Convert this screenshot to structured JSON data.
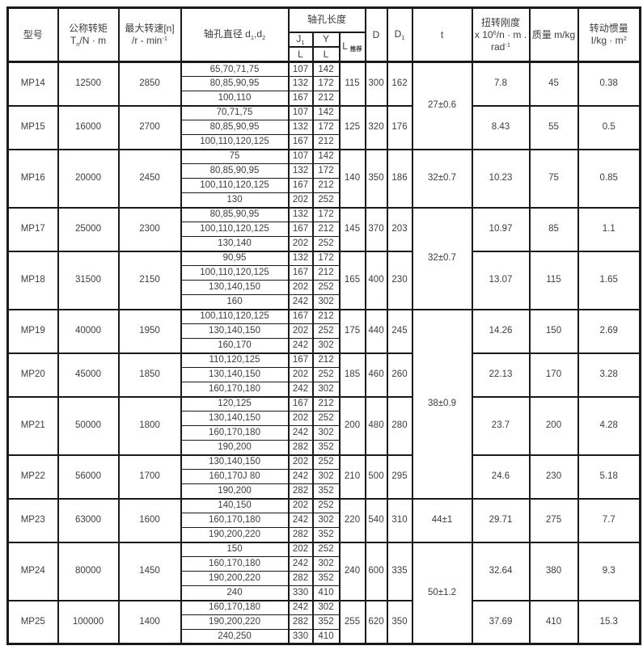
{
  "table": {
    "header": {
      "model": "型号",
      "torque_title": "公称转矩",
      "torque_sym": "T",
      "torque_sub": "n",
      "torque_unit": "/N · m",
      "speed_title": "最大转速[n]",
      "speed_unit": "/r - min",
      "speed_sup": "-1",
      "bore_title": "轴孔直径 d",
      "bore_sub1": "1",
      "bore_mid": ",d",
      "bore_sub2": "2",
      "length_title": "轴孔长度",
      "j_sym": "J",
      "j_sub": "1",
      "y_label": "Y",
      "l_label_j": "L",
      "l_label_y": "L",
      "lrec_sym": "L",
      "lrec_sub": "推荐",
      "d_label": "D",
      "d1_sym": "D",
      "d1_sub": "1",
      "t_label": "t",
      "stiff_title": "扭转刚度",
      "stiff_l2a": "x 10",
      "stiff_l2sup": "6",
      "stiff_l2b": "/n · m .",
      "stiff_l3a": "rad",
      "stiff_l3sup": "-1",
      "mass_label": "质量  m/kg",
      "inertia_title": "转动惯量",
      "inertia_unit": "I/kg · m",
      "inertia_sup": "2"
    },
    "groups": [
      {
        "model": "MP14",
        "torque": "12500",
        "speed": "2850",
        "l_rec": "115",
        "D": "300",
        "D1": "162",
        "t": {
          "label": "27±0.6",
          "rowspan": 6
        },
        "stiffness": "7.8",
        "mass": "45",
        "inertia": "0.38",
        "bores": [
          {
            "d": "65,70,71,75",
            "j1": "107",
            "y": "142"
          },
          {
            "d": "80,85,90,95",
            "j1": "132",
            "y": "172"
          },
          {
            "d": "100,110",
            "j1": "167",
            "y": "212"
          }
        ]
      },
      {
        "model": "MP15",
        "torque": "16000",
        "speed": "2700",
        "l_rec": "125",
        "D": "320",
        "D1": "176",
        "t": null,
        "stiffness": "8.43",
        "mass": "55",
        "inertia": "0.5",
        "bores": [
          {
            "d": "70,71,75",
            "j1": "107",
            "y": "142"
          },
          {
            "d": "80,85,90,95",
            "j1": "132",
            "y": "172"
          },
          {
            "d": "100,110,120,125",
            "j1": "167",
            "y": "212"
          }
        ]
      },
      {
        "model": "MP16",
        "torque": "20000",
        "speed": "2450",
        "l_rec": "140",
        "D": "350",
        "D1": "186",
        "t": {
          "label": "32±0.7",
          "rowspan": 4
        },
        "stiffness": "10.23",
        "mass": "75",
        "inertia": "0.85",
        "bores": [
          {
            "d": "75",
            "j1": "107",
            "y": "142"
          },
          {
            "d": "80,85,90,95",
            "j1": "132",
            "y": "172"
          },
          {
            "d": "100,110,120,125",
            "j1": "167",
            "y": "212"
          },
          {
            "d": "130",
            "j1": "202",
            "y": "252"
          }
        ]
      },
      {
        "model": "MP17",
        "torque": "25000",
        "speed": "2300",
        "l_rec": "145",
        "D": "370",
        "D1": "203",
        "t": {
          "label": "32±0.7",
          "rowspan": 7
        },
        "stiffness": "10.97",
        "mass": "85",
        "inertia": "1.1",
        "bores": [
          {
            "d": "80,85,90,95",
            "j1": "132",
            "y": "172"
          },
          {
            "d": "100,110,120,125",
            "j1": "167",
            "y": "212"
          },
          {
            "d": "130,140",
            "j1": "202",
            "y": "252"
          }
        ]
      },
      {
        "model": "MP18",
        "torque": "31500",
        "speed": "2150",
        "l_rec": "165",
        "D": "400",
        "D1": "230",
        "t": null,
        "stiffness": "13.07",
        "mass": "115",
        "inertia": "1.65",
        "bores": [
          {
            "d": "90,95",
            "j1": "132",
            "y": "172"
          },
          {
            "d": "100,110,120,125",
            "j1": "167",
            "y": "212"
          },
          {
            "d": "130,140,150",
            "j1": "202",
            "y": "252"
          },
          {
            "d": "160",
            "j1": "242",
            "y": "302"
          }
        ]
      },
      {
        "model": "MP19",
        "torque": "40000",
        "speed": "1950",
        "l_rec": "175",
        "D": "440",
        "D1": "245",
        "t": {
          "label": "38±0.9",
          "rowspan": 13
        },
        "stiffness": "14.26",
        "mass": "150",
        "inertia": "2.69",
        "bores": [
          {
            "d": "100,110,120,125",
            "j1": "167",
            "y": "212"
          },
          {
            "d": "130,140,150",
            "j1": "202",
            "y": "252"
          },
          {
            "d": "160,170",
            "j1": "242",
            "y": "302"
          }
        ]
      },
      {
        "model": "MP20",
        "torque": "45000",
        "speed": "1850",
        "l_rec": "185",
        "D": "460",
        "D1": "260",
        "t": null,
        "stiffness": "22.13",
        "mass": "170",
        "inertia": "3.28",
        "bores": [
          {
            "d": "110,120,125",
            "j1": "167",
            "y": "212"
          },
          {
            "d": "130,140,150",
            "j1": "202",
            "y": "252"
          },
          {
            "d": "160,170,180",
            "j1": "242",
            "y": "302"
          }
        ]
      },
      {
        "model": "MP21",
        "torque": "50000",
        "speed": "1800",
        "l_rec": "200",
        "D": "480",
        "D1": "280",
        "t": null,
        "stiffness": "23.7",
        "mass": "200",
        "inertia": "4.28",
        "bores": [
          {
            "d": "120,125",
            "j1": "167",
            "y": "212"
          },
          {
            "d": "130,140,150",
            "j1": "202",
            "y": "252"
          },
          {
            "d": "160,170,180",
            "j1": "242",
            "y": "302"
          },
          {
            "d": "190,200",
            "j1": "282",
            "y": "352"
          }
        ]
      },
      {
        "model": "MP22",
        "torque": "56000",
        "speed": "1700",
        "l_rec": "210",
        "D": "500",
        "D1": "295",
        "t": null,
        "stiffness": "24.6",
        "mass": "230",
        "inertia": "5.18",
        "bores": [
          {
            "d": "130,140,150",
            "j1": "202",
            "y": "252"
          },
          {
            "d": "160,170J 80",
            "j1": "242",
            "y": "302"
          },
          {
            "d": "190,200",
            "j1": "282",
            "y": "352"
          }
        ]
      },
      {
        "model": "MP23",
        "torque": "63000",
        "speed": "1600",
        "l_rec": "220",
        "D": "540",
        "D1": "310",
        "t": {
          "label": "44±1",
          "rowspan": 3
        },
        "stiffness": "29.71",
        "mass": "275",
        "inertia": "7.7",
        "bores": [
          {
            "d": "140,150",
            "j1": "202",
            "y": "252"
          },
          {
            "d": "160,170,180",
            "j1": "242",
            "y": "302"
          },
          {
            "d": "190,200,220",
            "j1": "282",
            "y": "352"
          }
        ]
      },
      {
        "model": "MP24",
        "torque": "80000",
        "speed": "1450",
        "l_rec": "240",
        "D": "600",
        "D1": "335",
        "t": {
          "label": "50±1.2",
          "rowspan": 7
        },
        "stiffness": "32.64",
        "mass": "380",
        "inertia": "9.3",
        "bores": [
          {
            "d": "150",
            "j1": "202",
            "y": "252"
          },
          {
            "d": "160,170,180",
            "j1": "242",
            "y": "302"
          },
          {
            "d": "190,200,220",
            "j1": "282",
            "y": "352"
          },
          {
            "d": "240",
            "j1": "330",
            "y": "410"
          }
        ]
      },
      {
        "model": "MP25",
        "torque": "100000",
        "speed": "1400",
        "l_rec": "255",
        "D": "620",
        "D1": "350",
        "t": null,
        "stiffness": "37.69",
        "mass": "410",
        "inertia": "15.3",
        "bores": [
          {
            "d": "160,170,180",
            "j1": "242",
            "y": "302"
          },
          {
            "d": "190,200,220",
            "j1": "282",
            "y": "352"
          },
          {
            "d": "240,250",
            "j1": "330",
            "y": "410"
          }
        ]
      }
    ]
  }
}
